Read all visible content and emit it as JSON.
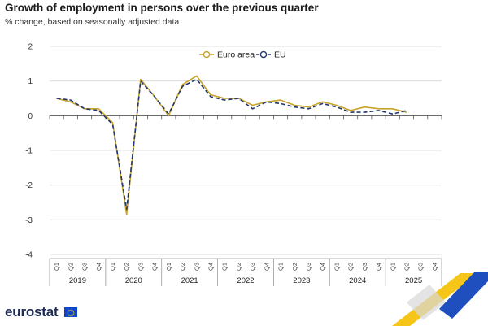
{
  "header": {
    "title": "Growth of employment in persons over the previous quarter",
    "subtitle": "% change, based on seasonally adjusted data"
  },
  "branding": {
    "logo_text": "eurostat",
    "flag_icon": "eu-flag-icon"
  },
  "colors": {
    "euro_area": "#c7a32b",
    "eu": "#23376b",
    "grid": "#d6d6d6",
    "decor_yellow": "#f5c518",
    "decor_blue": "#1f4fbf"
  },
  "chart_data": {
    "type": "line",
    "title": "Growth of employment in persons over the previous quarter",
    "subtitle": "% change, based on seasonally adjusted data",
    "xlabel": "",
    "ylabel": "",
    "ylim": [
      -4,
      2
    ],
    "yticks": [
      "2",
      "1",
      "0",
      "-1",
      "-2",
      "-3",
      "-4"
    ],
    "grid": "horizontal",
    "legend_position": "top-center",
    "quarters": [
      "Q1",
      "Q2",
      "Q3",
      "Q4",
      "Q1",
      "Q2",
      "Q3",
      "Q4",
      "Q1",
      "Q2",
      "Q3",
      "Q4",
      "Q1",
      "Q2",
      "Q3",
      "Q4",
      "Q1",
      "Q2",
      "Q3",
      "Q4",
      "Q1",
      "Q2",
      "Q3",
      "Q4",
      "Q1",
      "Q2",
      "Q3",
      "Q4"
    ],
    "years": [
      "2019",
      "2020",
      "2021",
      "2022",
      "2023",
      "2024",
      "2025"
    ],
    "series": [
      {
        "name": "Euro area",
        "style": "solid",
        "values": [
          0.5,
          0.4,
          0.2,
          0.2,
          -0.2,
          -2.85,
          1.05,
          0.55,
          0.0,
          0.9,
          1.15,
          0.6,
          0.5,
          0.5,
          0.3,
          0.4,
          0.45,
          0.3,
          0.25,
          0.4,
          0.3,
          0.15,
          0.25,
          0.2,
          0.2,
          0.1,
          null,
          null
        ]
      },
      {
        "name": "EU",
        "style": "dashed",
        "values": [
          0.5,
          0.45,
          0.2,
          0.15,
          -0.25,
          -2.7,
          1.0,
          0.55,
          0.05,
          0.85,
          1.05,
          0.55,
          0.45,
          0.5,
          0.2,
          0.4,
          0.35,
          0.25,
          0.2,
          0.35,
          0.25,
          0.1,
          0.1,
          0.15,
          0.05,
          0.15,
          null,
          null
        ]
      }
    ]
  }
}
